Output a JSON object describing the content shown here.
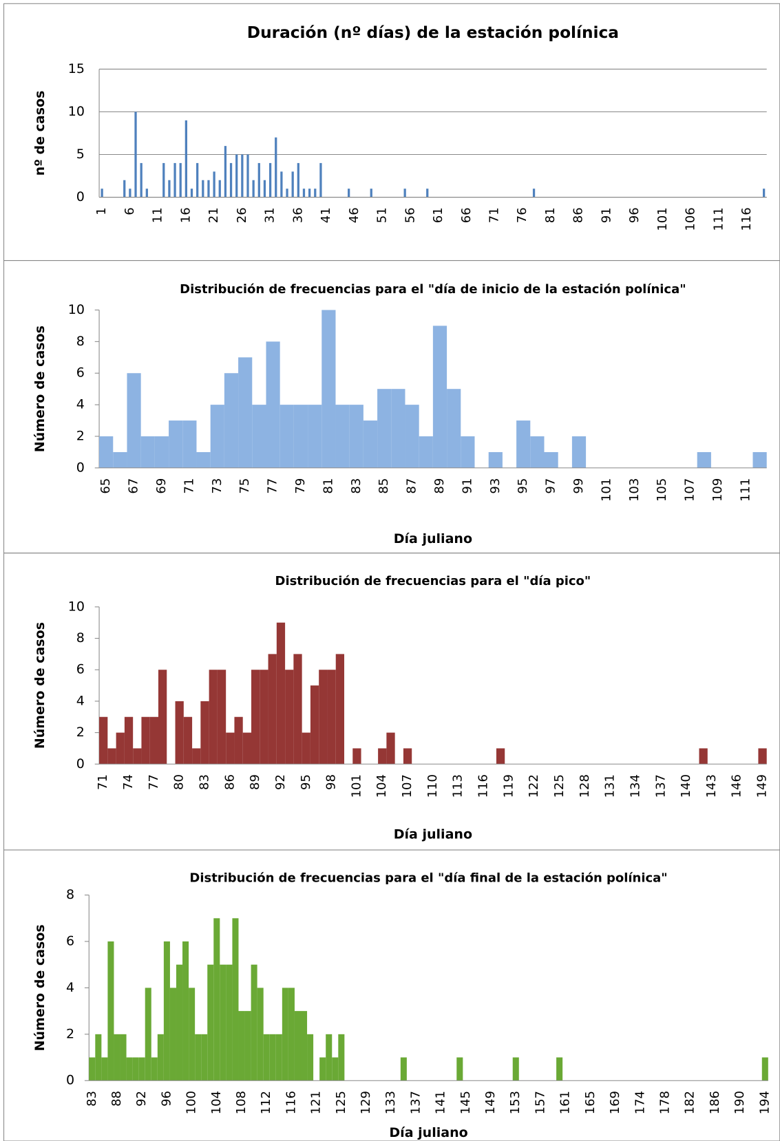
{
  "chart_data": [
    {
      "type": "bar",
      "title": "Duración (nº días) de la estación polínica",
      "y_label": "nº de casos",
      "color": "#4f81bd",
      "grid": true,
      "ylim": [
        0,
        15
      ],
      "yticks": [
        0,
        5,
        10,
        15
      ],
      "categories": [
        "1",
        null,
        null,
        null,
        null,
        "6",
        null,
        null,
        null,
        null,
        "11",
        null,
        null,
        null,
        null,
        "16",
        null,
        null,
        null,
        null,
        "21",
        null,
        null,
        null,
        null,
        "26",
        null,
        null,
        null,
        null,
        "31",
        null,
        null,
        null,
        null,
        "36",
        null,
        null,
        null,
        null,
        "41",
        null,
        null,
        null,
        null,
        "46",
        null,
        null,
        null,
        null,
        "51",
        null,
        null,
        null,
        null,
        "56",
        null,
        null,
        null,
        null,
        "61",
        null,
        null,
        null,
        null,
        "66",
        null,
        null,
        null,
        null,
        "71",
        null,
        null,
        null,
        null,
        "76",
        null,
        null,
        null,
        null,
        "81",
        null,
        null,
        null,
        null,
        "86",
        null,
        null,
        null,
        null,
        "91",
        null,
        null,
        null,
        null,
        "96",
        null,
        null,
        null,
        null,
        "101",
        null,
        null,
        null,
        null,
        "106",
        null,
        null,
        null,
        null,
        "111",
        null,
        null,
        null,
        null,
        "116",
        null,
        null,
        null
      ],
      "values": [
        1,
        0,
        0,
        0,
        2,
        1,
        10,
        4,
        1,
        0,
        0,
        4,
        2,
        4,
        4,
        9,
        1,
        4,
        2,
        2,
        3,
        2,
        6,
        4,
        5,
        5,
        5,
        2,
        4,
        2,
        4,
        7,
        3,
        1,
        3,
        4,
        1,
        1,
        1,
        4,
        0,
        0,
        0,
        0,
        1,
        0,
        0,
        0,
        1,
        0,
        0,
        0,
        0,
        0,
        1,
        0,
        0,
        0,
        1,
        0,
        0,
        0,
        0,
        0,
        0,
        0,
        0,
        0,
        0,
        0,
        0,
        0,
        0,
        0,
        0,
        0,
        0,
        1,
        0,
        0,
        0,
        0,
        0,
        0,
        0,
        0,
        0,
        0,
        0,
        0,
        0,
        0,
        0,
        0,
        0,
        0,
        0,
        0,
        0,
        0,
        0,
        0,
        0,
        0,
        0,
        0,
        0,
        0,
        0,
        0,
        0,
        0,
        0,
        0,
        0,
        0,
        0,
        0,
        1
      ]
    },
    {
      "type": "bar",
      "title": "Distribución de frecuencias para el \"día de inicio de la estación polínica\"",
      "y_label": "Número de casos",
      "x_label": "Día juliano",
      "color": "#8db3e2",
      "grid": false,
      "ylim": [
        0,
        10
      ],
      "yticks": [
        0,
        2,
        4,
        6,
        8,
        10
      ],
      "categories": [
        "65",
        null,
        "67",
        null,
        "69",
        null,
        "71",
        null,
        "73",
        null,
        "75",
        null,
        "77",
        null,
        "79",
        null,
        "81",
        null,
        "83",
        null,
        "85",
        null,
        "87",
        null,
        "89",
        null,
        "91",
        null,
        "93",
        null,
        "95",
        null,
        "97",
        null,
        "99",
        null,
        "101",
        null,
        "103",
        null,
        "105",
        null,
        "107",
        null,
        "109",
        null,
        "111",
        null
      ],
      "values": [
        2,
        1,
        6,
        2,
        2,
        3,
        3,
        1,
        4,
        6,
        7,
        4,
        8,
        4,
        4,
        4,
        10,
        4,
        4,
        3,
        5,
        5,
        4,
        2,
        9,
        5,
        2,
        0,
        1,
        0,
        3,
        2,
        1,
        0,
        2,
        0,
        0,
        0,
        0,
        0,
        0,
        0,
        0,
        1,
        0,
        0,
        0,
        1
      ]
    },
    {
      "type": "bar",
      "title": "Distribución de frecuencias para el \"día pico\"",
      "y_label": "Número de casos",
      "x_label": "Día juliano",
      "color": "#953735",
      "grid": false,
      "ylim": [
        0,
        10
      ],
      "yticks": [
        0,
        2,
        4,
        6,
        8,
        10
      ],
      "categories": [
        "71",
        null,
        null,
        "74",
        null,
        null,
        "77",
        null,
        null,
        "80",
        null,
        null,
        "83",
        null,
        null,
        "86",
        null,
        null,
        "89",
        null,
        null,
        "92",
        null,
        null,
        "95",
        null,
        null,
        "98",
        null,
        null,
        "101",
        null,
        null,
        "104",
        null,
        null,
        "107",
        null,
        null,
        "110",
        null,
        null,
        "113",
        null,
        null,
        "116",
        null,
        null,
        "119",
        null,
        null,
        "122",
        null,
        null,
        "125",
        null,
        null,
        "128",
        null,
        null,
        "131",
        null,
        null,
        "134",
        null,
        null,
        "137",
        null,
        null,
        "140",
        null,
        null,
        "143",
        null,
        null,
        "146",
        null,
        null,
        "149"
      ],
      "values": [
        3,
        1,
        2,
        3,
        1,
        3,
        3,
        6,
        0,
        4,
        3,
        1,
        4,
        6,
        6,
        2,
        3,
        2,
        6,
        6,
        7,
        9,
        6,
        7,
        2,
        5,
        6,
        6,
        7,
        0,
        1,
        0,
        0,
        1,
        2,
        0,
        1,
        0,
        0,
        0,
        0,
        0,
        0,
        0,
        0,
        0,
        0,
        1,
        0,
        0,
        0,
        0,
        0,
        0,
        0,
        0,
        0,
        0,
        0,
        0,
        0,
        0,
        0,
        0,
        0,
        0,
        0,
        0,
        0,
        0,
        0,
        1,
        0,
        0,
        0,
        0,
        0,
        0,
        1
      ]
    },
    {
      "type": "bar",
      "title": "Distribución de frecuencias para el \"día final de la estación polínica\"",
      "y_label": "Número de casos",
      "x_label": "Día juliano",
      "color": "#6aa935",
      "grid": false,
      "ylim": [
        0,
        8
      ],
      "yticks": [
        0,
        2,
        4,
        6,
        8
      ],
      "categories": [
        "83",
        null,
        null,
        null,
        "88",
        null,
        null,
        null,
        "92",
        null,
        null,
        null,
        "96",
        null,
        null,
        null,
        "100",
        null,
        null,
        null,
        "104",
        null,
        null,
        null,
        "108",
        null,
        null,
        null,
        "112",
        null,
        null,
        null,
        "116",
        null,
        null,
        null,
        "121",
        null,
        null,
        null,
        "125",
        null,
        null,
        null,
        "129",
        null,
        null,
        null,
        "133",
        null,
        null,
        null,
        "137",
        null,
        null,
        null,
        "141",
        null,
        null,
        null,
        "145",
        null,
        null,
        null,
        "149",
        null,
        null,
        null,
        "153",
        null,
        null,
        null,
        "157",
        null,
        null,
        null,
        "161",
        null,
        null,
        null,
        "165",
        null,
        null,
        null,
        "169",
        null,
        null,
        null,
        "174",
        null,
        null,
        null,
        "178",
        null,
        null,
        null,
        "182",
        null,
        null,
        null,
        "186",
        null,
        null,
        null,
        "190",
        null,
        null,
        null,
        "194"
      ],
      "values": [
        1,
        2,
        1,
        6,
        2,
        2,
        1,
        1,
        1,
        4,
        1,
        2,
        6,
        4,
        5,
        6,
        4,
        2,
        2,
        5,
        7,
        5,
        5,
        7,
        3,
        3,
        5,
        4,
        2,
        2,
        2,
        4,
        4,
        3,
        3,
        2,
        0,
        1,
        2,
        1,
        2,
        0,
        0,
        0,
        0,
        0,
        0,
        0,
        0,
        0,
        1,
        0,
        0,
        0,
        0,
        0,
        0,
        0,
        0,
        1,
        0,
        0,
        0,
        0,
        0,
        0,
        0,
        0,
        1,
        0,
        0,
        0,
        0,
        0,
        0,
        1,
        0,
        0,
        0,
        0,
        0,
        0,
        0,
        0,
        0,
        0,
        0,
        0,
        0,
        0,
        0,
        0,
        0,
        0,
        0,
        0,
        0,
        0,
        0,
        0,
        0,
        0,
        0,
        0,
        0,
        0,
        0,
        0,
        1
      ]
    }
  ]
}
